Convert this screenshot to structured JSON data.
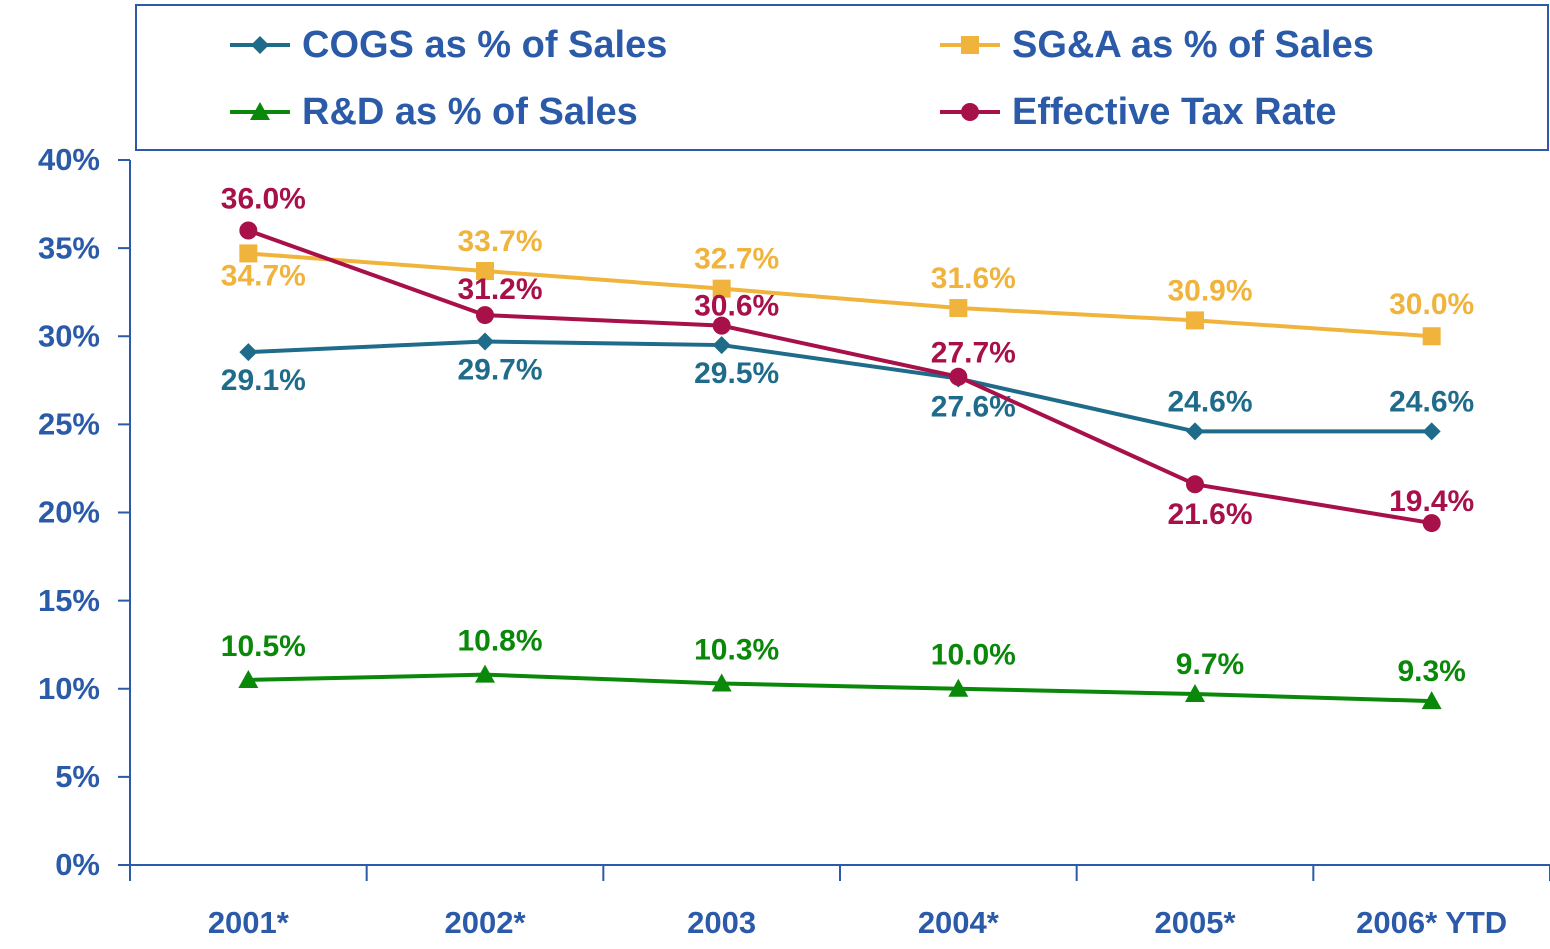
{
  "chart_data": {
    "type": "line",
    "categories": [
      "2001*",
      "2002*",
      "2003",
      "2004*",
      "2005*",
      "2006* YTD"
    ],
    "series": [
      {
        "name": "COGS as % of Sales",
        "color": "#1f6b8a",
        "marker": "diamond",
        "values": [
          29.1,
          29.7,
          29.5,
          27.6,
          24.6,
          24.6
        ],
        "value_labels": [
          "29.1%",
          "29.7%",
          "29.5%",
          "27.6%",
          "24.6%",
          "24.6%"
        ]
      },
      {
        "name": "SG&A as % of Sales",
        "color": "#f0b43c",
        "marker": "square",
        "values": [
          34.7,
          33.7,
          32.7,
          31.6,
          30.9,
          30.0
        ],
        "value_labels": [
          "34.7%",
          "33.7%",
          "32.7%",
          "31.6%",
          "30.9%",
          "30.0%"
        ]
      },
      {
        "name": "R&D as % of Sales",
        "color": "#0a880a",
        "marker": "triangle",
        "values": [
          10.5,
          10.8,
          10.3,
          10.0,
          9.7,
          9.3
        ],
        "value_labels": [
          "10.5%",
          "10.8%",
          "10.3%",
          "10.0%",
          "9.7%",
          "9.3%"
        ]
      },
      {
        "name": "Effective Tax Rate",
        "color": "#a8104a",
        "marker": "circle",
        "values": [
          36.0,
          31.2,
          30.6,
          27.7,
          21.6,
          19.4
        ],
        "value_labels": [
          "36.0%",
          "31.2%",
          "30.6%",
          "27.7%",
          "21.6%",
          "19.4%"
        ]
      }
    ],
    "ylim": [
      0,
      40
    ],
    "yticks": [
      {
        "value": 0,
        "label": "0%"
      },
      {
        "value": 5,
        "label": "5%"
      },
      {
        "value": 10,
        "label": "10%"
      },
      {
        "value": 15,
        "label": "15%"
      },
      {
        "value": 20,
        "label": "20%"
      },
      {
        "value": 25,
        "label": "25%"
      },
      {
        "value": 30,
        "label": "30%"
      },
      {
        "value": 35,
        "label": "35%"
      },
      {
        "value": 40,
        "label": "40%"
      }
    ]
  }
}
